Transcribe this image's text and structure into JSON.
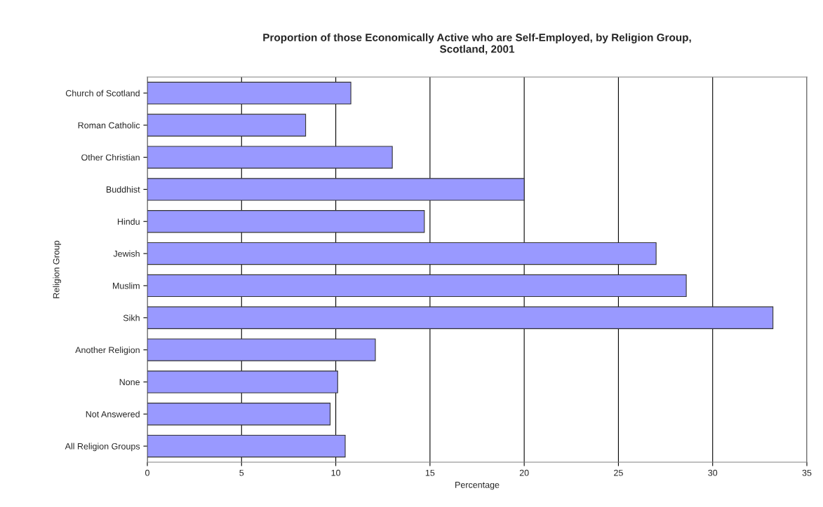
{
  "chart_data": {
    "type": "bar",
    "orientation": "horizontal",
    "title": "Proportion of those Economically Active who are Self-Employed, by Religion Group,\nScotland, 2001",
    "xlabel": "Percentage",
    "ylabel": "Religion Group",
    "categories": [
      "Church of Scotland",
      "Roman Catholic",
      "Other Christian",
      "Buddhist",
      "Hindu",
      "Jewish",
      "Muslim",
      "Sikh",
      "Another Religion",
      "None",
      "Not Answered",
      "All Religion Groups"
    ],
    "values": [
      10.8,
      8.4,
      13.0,
      20.0,
      14.7,
      27.0,
      28.6,
      33.2,
      12.1,
      10.1,
      9.7,
      10.5
    ],
    "color": "#9999ff",
    "xlim": [
      0,
      35
    ],
    "xticks": [
      0,
      5,
      10,
      15,
      20,
      25,
      30,
      35
    ],
    "grid": "x"
  }
}
